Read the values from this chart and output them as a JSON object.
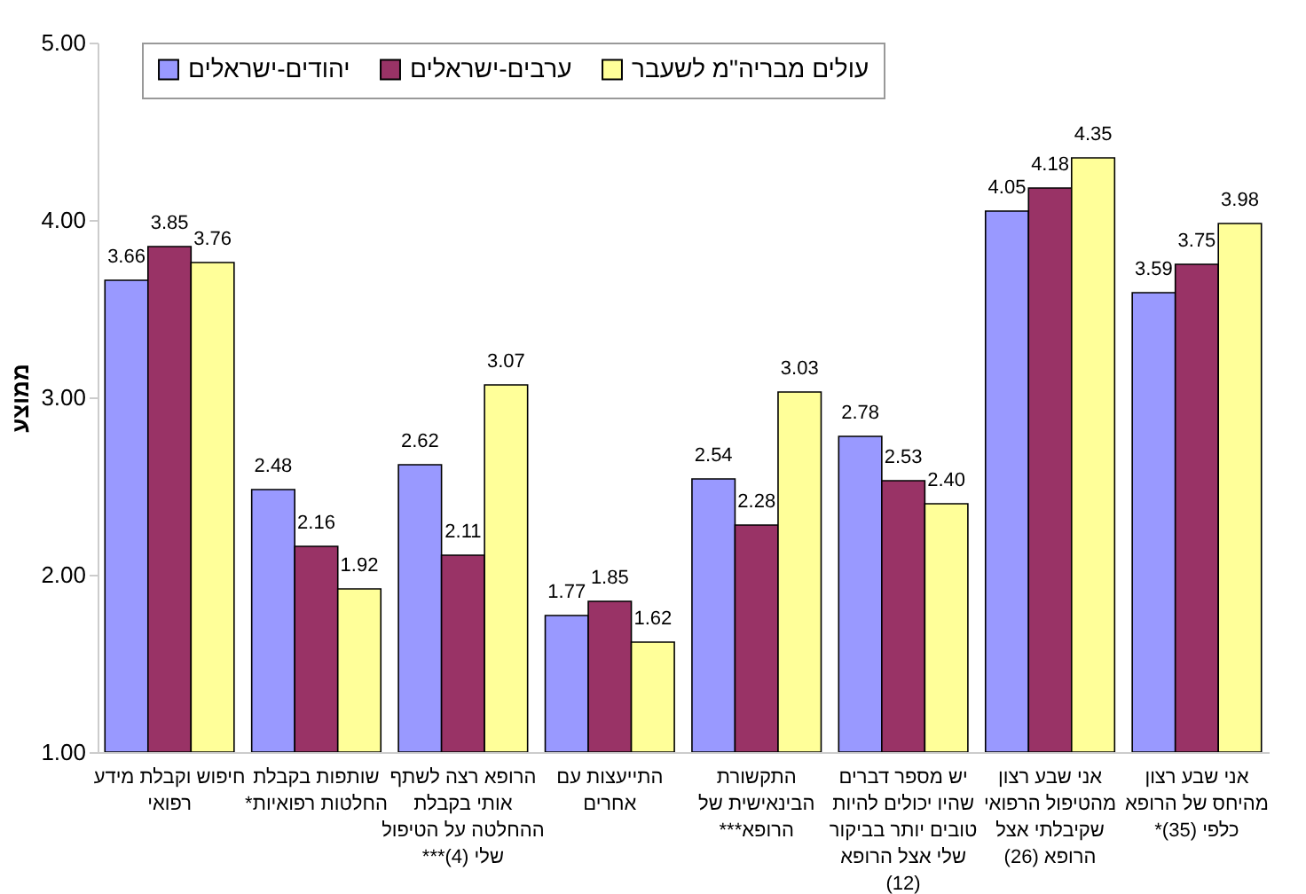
{
  "chart_data": {
    "type": "bar",
    "ylabel": "ממוצע",
    "categories": [
      "חיפוש וקבלת מידע\nרפואי",
      "שותפות בקבלת\nהחלטות רפואיות*",
      "הרופא רצה לשתף\nאותי בקבלת\nההחלטה על הטיפול\nשלי (4)***",
      "התייעצות עם\nאחרים",
      "התקשורת\nהבינאישית של\nהרופא***",
      "יש מספר דברים\nשהיו יכולים להיות\nטובים יותר בביקור\nשלי אצל הרופא\n(12)",
      "אני שבע רצון\nמהטיפול הרפואי\nשקיבלתי אצל\nהרופא (26)",
      "אני שבע רצון\nמהיחס של הרופא\nכלפי (35)*"
    ],
    "series": [
      {
        "name": "יהודים-ישראלים",
        "color": "#9999ff",
        "values": [
          3.66,
          2.48,
          2.62,
          1.77,
          2.54,
          2.78,
          4.05,
          3.59
        ],
        "value_labels": [
          "3.66",
          "2.48",
          "2.62",
          "1.77",
          "2.54",
          "2.78",
          "4.05",
          "3.59"
        ]
      },
      {
        "name": "ערבים-ישראלים",
        "color": "#993366",
        "values": [
          3.85,
          2.16,
          2.11,
          1.85,
          2.28,
          2.53,
          4.18,
          3.75
        ],
        "value_labels": [
          "3.85",
          "2.16",
          "2.11",
          "1.85",
          "2.28",
          "2.53",
          "4.18",
          "3.75"
        ]
      },
      {
        "name": "עולים מבריה\"מ לשעבר",
        "color": "#ffff99",
        "values": [
          3.76,
          1.92,
          3.07,
          1.62,
          3.03,
          2.4,
          4.35,
          3.98
        ],
        "value_labels": [
          "3.76",
          "1.92",
          "3.07",
          "1.62",
          "3.03",
          "2.40",
          "4.35",
          "3.98"
        ]
      }
    ],
    "ylim": [
      1,
      5
    ],
    "yticks": [
      {
        "value": 1,
        "label": "1.00"
      },
      {
        "value": 2,
        "label": "2.00"
      },
      {
        "value": 3,
        "label": "3.00"
      },
      {
        "value": 4,
        "label": "4.00"
      },
      {
        "value": 5,
        "label": "5.00"
      }
    ],
    "legend": "top left"
  }
}
